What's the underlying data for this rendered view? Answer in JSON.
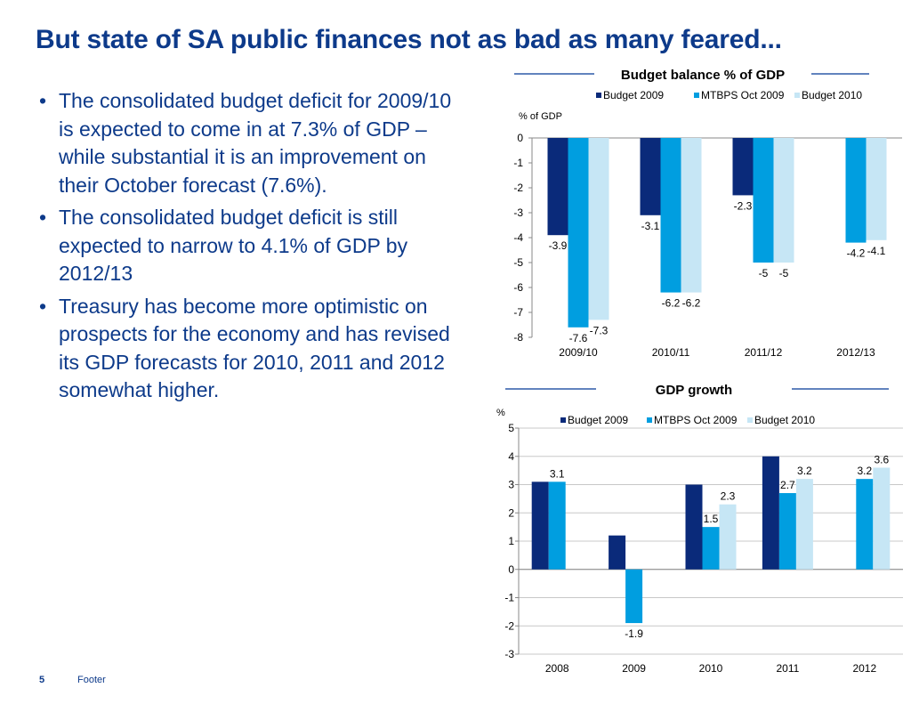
{
  "slide": {
    "title": "But state of SA public finances not as bad as many feared...",
    "bullets": [
      "The consolidated budget deficit for 2009/10 is expected to come in at 7.3% of GDP – while substantial it is an improvement on their October forecast (7.6%).",
      "The consolidated budget deficit is still expected to narrow to 4.1% of GDP by 2012/13",
      "Treasury has become more optimistic on prospects for the economy and has revised its GDP forecasts for 2010, 2011 and 2012 somewhat higher."
    ],
    "bullet_glyph": "•",
    "page_number": "5",
    "footer": "Footer"
  },
  "colors": {
    "title": "#0d3a8a",
    "series": [
      "#0a2a7a",
      "#009ee0",
      "#c6e6f5"
    ],
    "gridline": "#c8c8c8",
    "header_rule": "#2e5aa8"
  },
  "chart_data": [
    {
      "type": "bar",
      "title": "Budget balance % of GDP",
      "ylabel": "% of GDP",
      "xlabel": "",
      "categories": [
        "2009/10",
        "2010/11",
        "2011/12",
        "2012/13"
      ],
      "series": [
        {
          "name": "Budget 2009",
          "values": [
            -3.9,
            -3.1,
            -2.3,
            null
          ]
        },
        {
          "name": "MTBPS Oct 2009",
          "values": [
            -7.6,
            -6.2,
            -5,
            -4.2
          ]
        },
        {
          "name": "Budget 2010",
          "values": [
            -7.3,
            -6.2,
            -5,
            -4.1
          ]
        }
      ],
      "ylim": [
        -8,
        0
      ],
      "yticks": [
        0,
        -1,
        -2,
        -3,
        -4,
        -5,
        -6,
        -7,
        -8
      ],
      "legend_position": "top",
      "grid": false
    },
    {
      "type": "bar",
      "title": "GDP  growth",
      "ylabel": "%",
      "xlabel": "",
      "categories": [
        "2008",
        "2009",
        "2010",
        "2011",
        "2012"
      ],
      "series": [
        {
          "name": "Budget 2009",
          "values": [
            3.1,
            1.2,
            3,
            4,
            null
          ]
        },
        {
          "name": "MTBPS Oct 2009",
          "values": [
            3.1,
            -1.9,
            1.5,
            2.7,
            3.2
          ]
        },
        {
          "name": "Budget 2010",
          "values": [
            null,
            null,
            2.3,
            3.2,
            3.6
          ]
        }
      ],
      "data_labels": [
        {
          "category": "2008",
          "series": "MTBPS Oct 2009",
          "text": "3.1"
        },
        {
          "category": "2009",
          "series": "MTBPS Oct 2009",
          "text": "-1.9"
        },
        {
          "category": "2010",
          "series": "MTBPS Oct 2009",
          "text": "1.5"
        },
        {
          "category": "2010",
          "series": "Budget 2010",
          "text": "2.3"
        },
        {
          "category": "2011",
          "series": "MTBPS Oct 2009",
          "text": "2.7"
        },
        {
          "category": "2011",
          "series": "Budget 2010",
          "text": "3.2"
        },
        {
          "category": "2012",
          "series": "MTBPS Oct 2009",
          "text": "3.2"
        },
        {
          "category": "2012",
          "series": "Budget 2010",
          "text": "3.6"
        }
      ],
      "ylim": [
        -3,
        5
      ],
      "yticks": [
        5,
        4,
        3,
        2,
        1,
        0,
        -1,
        -2,
        -3
      ],
      "legend_position": "top",
      "grid": true
    }
  ]
}
